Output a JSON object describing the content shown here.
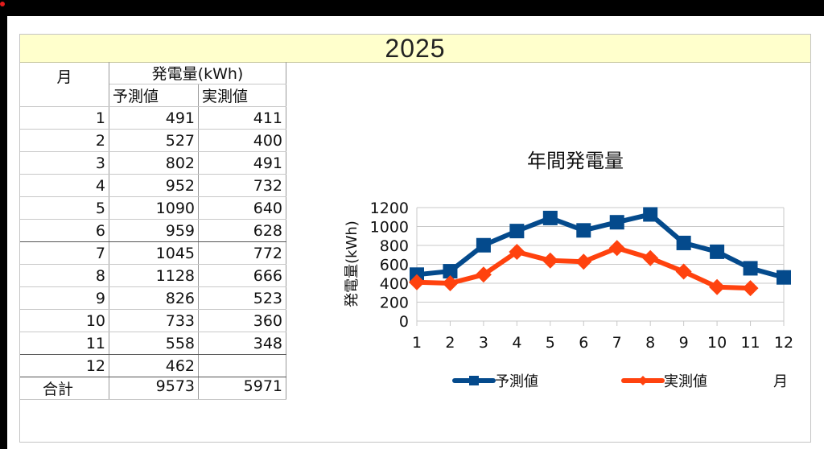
{
  "year_title": "2025",
  "table": {
    "month_header": "月",
    "group_header": "発電量(kWh)",
    "col_forecast": "予測値",
    "col_actual": "実測値",
    "rows": [
      {
        "month": "1",
        "forecast": "491",
        "actual": "411"
      },
      {
        "month": "2",
        "forecast": "527",
        "actual": "400"
      },
      {
        "month": "3",
        "forecast": "802",
        "actual": "491"
      },
      {
        "month": "4",
        "forecast": "952",
        "actual": "732"
      },
      {
        "month": "5",
        "forecast": "1090",
        "actual": "640"
      },
      {
        "month": "6",
        "forecast": "959",
        "actual": "628"
      },
      {
        "month": "7",
        "forecast": "1045",
        "actual": "772"
      },
      {
        "month": "8",
        "forecast": "1128",
        "actual": "666"
      },
      {
        "month": "9",
        "forecast": "826",
        "actual": "523"
      },
      {
        "month": "10",
        "forecast": "733",
        "actual": "360"
      },
      {
        "month": "11",
        "forecast": "558",
        "actual": "348"
      },
      {
        "month": "12",
        "forecast": "462",
        "actual": ""
      }
    ],
    "total_label": "合計",
    "total_forecast": "9573",
    "total_actual": "5971"
  },
  "chart_data": {
    "type": "line",
    "title": "年間発電量",
    "xlabel": "月",
    "ylabel": "発電量(kWh)",
    "categories": [
      "1",
      "2",
      "3",
      "4",
      "5",
      "6",
      "7",
      "8",
      "9",
      "10",
      "11",
      "12"
    ],
    "ylim": [
      0,
      1200
    ],
    "yticks": [
      0,
      200,
      400,
      600,
      800,
      1000,
      1200
    ],
    "grid": true,
    "legend_position": "bottom",
    "series": [
      {
        "name": "予測値",
        "color": "#044a8c",
        "marker": "square",
        "values": [
          491,
          527,
          802,
          952,
          1090,
          959,
          1045,
          1128,
          826,
          733,
          558,
          462
        ]
      },
      {
        "name": "実測値",
        "color": "#ff420e",
        "marker": "diamond",
        "values": [
          411,
          400,
          491,
          732,
          640,
          628,
          772,
          666,
          523,
          360,
          348,
          null
        ]
      }
    ]
  }
}
